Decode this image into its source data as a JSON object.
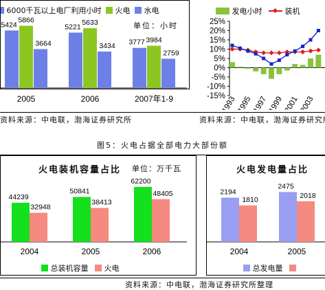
{
  "colors": {
    "blue_series": "#6c80e8",
    "green_series": "#8bc720",
    "bright_green": "#14e01e",
    "salmon": "#f58a80",
    "periwinkle": "#9a9ef0",
    "red_line": "#e11d1d",
    "blue_line": "#1326c4",
    "olive_bar": "#89c33e"
  },
  "top_sources": {
    "left": "资料来源：中电联，渤海证券研究所",
    "right": "资料来源：中电联，渤海证券研究所"
  },
  "figure_caption": "图5：火电占据全部电力大部份额",
  "bottom_source": "资料来源：中电联，渤海证券研究所整理",
  "chart_data": [
    {
      "id": "hours_chart",
      "type": "bar",
      "title": "",
      "unit_label": "单位：小时",
      "legend": [
        "6000千瓦以上电厂利用小时",
        "火电",
        "水电"
      ],
      "categories": [
        "2005",
        "2006",
        "2007年1-9"
      ],
      "series": [
        {
          "name": "6000千瓦以上电厂利用小时",
          "values": [
            5424,
            5221,
            3777
          ]
        },
        {
          "name": "火电",
          "values": [
            5866,
            5633,
            3984
          ]
        },
        {
          "name": "水电",
          "values": [
            3664,
            3434,
            2759
          ]
        }
      ],
      "ylim": [
        0,
        7000
      ]
    },
    {
      "id": "growth_chart",
      "type": "bar+line",
      "legend": [
        "发电小时",
        "装机"
      ],
      "y_ticks": [
        "25%",
        "20%",
        "15%",
        "10%",
        "5%",
        "0%",
        "-5%",
        "-10%",
        "-15%"
      ],
      "x_ticks": [
        "1993",
        "1995",
        "1997",
        "1999",
        "2001",
        "2003"
      ],
      "x": [
        1993,
        1994,
        1995,
        1996,
        1997,
        1998,
        1999,
        2000,
        2001,
        2002,
        2003,
        2004
      ],
      "series": [
        {
          "name": "发电小时",
          "kind": "bar",
          "values": [
            3,
            0.5,
            -0.5,
            -2,
            -3.5,
            -6,
            -3.5,
            -1.5,
            2,
            1.5,
            5,
            7
          ]
        },
        {
          "name": "装机",
          "kind": "line",
          "color": "red",
          "values": [
            10,
            10,
            9.5,
            8.5,
            8,
            8,
            8,
            8.5,
            8.5,
            8.5,
            9,
            9.5
          ]
        },
        {
          "name": "",
          "kind": "line",
          "color": "blue",
          "values": [
            12,
            10.5,
            9,
            7.5,
            5,
            2,
            4,
            7,
            9,
            11.5,
            15,
            20
          ]
        }
      ],
      "ylim": [
        -15,
        25
      ]
    },
    {
      "id": "capacity_chart",
      "type": "bar",
      "title": "火电装机容量占比",
      "unit_label": "单位：万千瓦",
      "categories": [
        "2004",
        "2005",
        "2006"
      ],
      "series": [
        {
          "name": "总装机容量",
          "values": [
            44239,
            50841,
            62200
          ]
        },
        {
          "name": "火电",
          "values": [
            32948,
            38413,
            48405
          ]
        }
      ],
      "ylim": [
        0,
        70000
      ]
    },
    {
      "id": "generation_chart",
      "type": "bar",
      "title": "火电发电量占比",
      "categories": [
        "2004",
        "2005"
      ],
      "series": [
        {
          "name": "总发电量",
          "values": [
            2194,
            2475
          ]
        },
        {
          "name": "",
          "values": [
            1810,
            2018
          ]
        }
      ],
      "ylim": [
        0,
        3000
      ]
    }
  ]
}
